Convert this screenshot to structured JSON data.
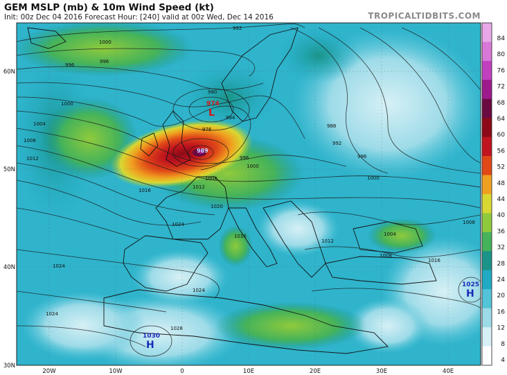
{
  "header": {
    "title": "GEM MSLP (mb) & 10m Wind Speed (kt)",
    "subtitle": "Init: 00z Dec 04 2016   Forecast Hour: [240]   valid at 00z Wed, Dec 14 2016",
    "brand": "TROPICALTIDBITS.COM"
  },
  "axes": {
    "lat_labels": [
      "60N",
      "50N",
      "40N",
      "30N"
    ],
    "lon_labels": [
      "20W",
      "10W",
      "0",
      "10E",
      "20E",
      "30E",
      "40E"
    ]
  },
  "colorbar": {
    "ticks": [
      "84",
      "80",
      "76",
      "72",
      "68",
      "64",
      "60",
      "56",
      "52",
      "48",
      "44",
      "40",
      "36",
      "32",
      "28",
      "24",
      "20",
      "16",
      "12",
      "8",
      "4"
    ],
    "colors": [
      "#ffffff",
      "#d6f0f5",
      "#9ddbe8",
      "#54c4d8",
      "#20aac4",
      "#1a9488",
      "#45b35a",
      "#8fca3c",
      "#d8d832",
      "#f0a020",
      "#e04818",
      "#c0141e",
      "#8c0a18",
      "#6a0a40",
      "#9c1a8c",
      "#c040c0",
      "#d878d8",
      "#e8a8e8"
    ]
  },
  "isobar_labels": [
    {
      "text": "992"
    },
    {
      "text": "1000"
    },
    {
      "text": "996"
    },
    {
      "text": "996"
    },
    {
      "text": "1000"
    },
    {
      "text": "1004"
    },
    {
      "text": "1008"
    },
    {
      "text": "1012"
    },
    {
      "text": "980"
    },
    {
      "text": "976"
    },
    {
      "text": "984"
    },
    {
      "text": "988"
    },
    {
      "text": "992"
    },
    {
      "text": "996"
    },
    {
      "text": "1000"
    },
    {
      "text": "1008"
    },
    {
      "text": "1012"
    },
    {
      "text": "1016"
    },
    {
      "text": "1020"
    },
    {
      "text": "1024"
    },
    {
      "text": "1024"
    },
    {
      "text": "1024"
    },
    {
      "text": "1028"
    },
    {
      "text": "1016"
    },
    {
      "text": "1004"
    },
    {
      "text": "1008"
    },
    {
      "text": "1012"
    },
    {
      "text": "1016"
    },
    {
      "text": "1000"
    },
    {
      "text": "988"
    },
    {
      "text": "992"
    },
    {
      "text": "996"
    },
    {
      "text": "1000"
    },
    {
      "text": "1008"
    },
    {
      "text": "1024"
    }
  ],
  "pressure_centers": [
    {
      "type": "L",
      "value": "974",
      "color": "#d01818"
    },
    {
      "type": "L",
      "value": "989",
      "color": "#d01818"
    },
    {
      "type": "H",
      "value": "1030",
      "color": "#1a2ab8"
    },
    {
      "type": "H",
      "value": "1025",
      "color": "#1a2ab8"
    }
  ]
}
